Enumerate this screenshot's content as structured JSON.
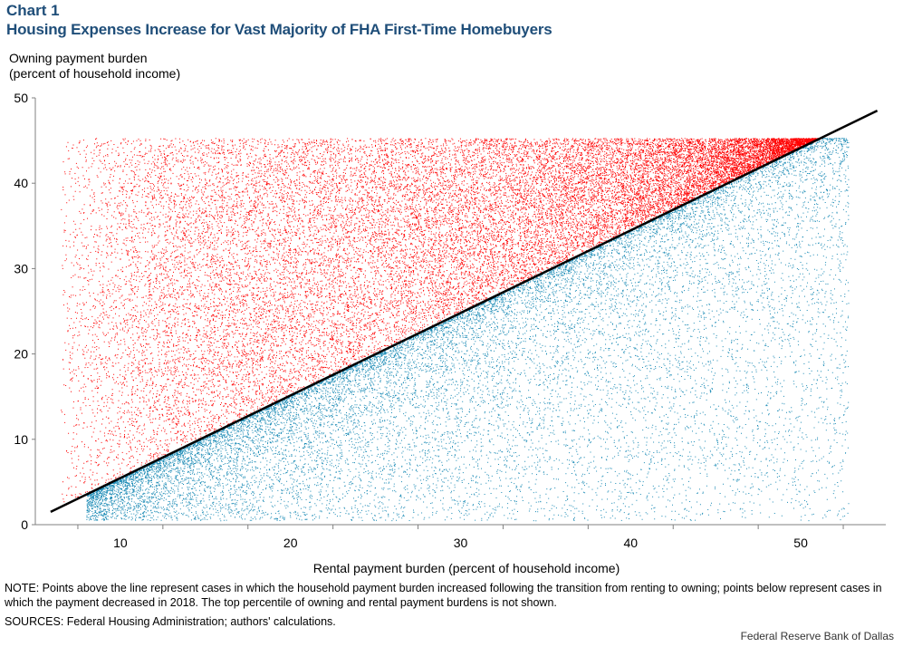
{
  "header": {
    "label": "Chart 1",
    "title": "Housing Expenses Increase for Vast Majority of FHA First-Time Homebuyers"
  },
  "y_label_lines": [
    "Owning payment burden",
    "(percent of household income)"
  ],
  "x_label": "Rental payment burden (percent of household income)",
  "note": "NOTE: Points above the line represent cases in which the household payment burden increased following the transition from renting to owning; points below represent cases in which the payment decreased in 2018. The top percentile of owning and rental payment burdens is not shown.",
  "sources": "SOURCES: Federal Housing Administration; authors' calculations.",
  "credit": "Federal Reserve  Bank of Dallas",
  "colors": {
    "above": "#ff0000",
    "below": "#1a8ab5",
    "line": "#000000",
    "title": "#1f4e79"
  },
  "chart_data": {
    "type": "scatter",
    "xlabel": "Rental payment burden (percent of household income)",
    "ylabel": "Owning payment burden (percent of household income)",
    "xlim": [
      5,
      55
    ],
    "ylim": [
      0,
      50
    ],
    "x_ticks": [
      10,
      20,
      30,
      40,
      50
    ],
    "y_ticks": [
      0,
      10,
      20,
      30,
      40,
      50
    ],
    "grid": false,
    "point_region": {
      "x_range": [
        6.5,
        52.8
      ],
      "y_range": [
        0.5,
        45.3
      ]
    },
    "reference_line": {
      "x": [
        5.9,
        54.5
      ],
      "y": [
        1.5,
        48.5
      ]
    },
    "series": [
      {
        "color": "#ff0000",
        "description_side": "above line"
      },
      {
        "color": "#1a8ab5",
        "description_side": "below line"
      }
    ]
  }
}
